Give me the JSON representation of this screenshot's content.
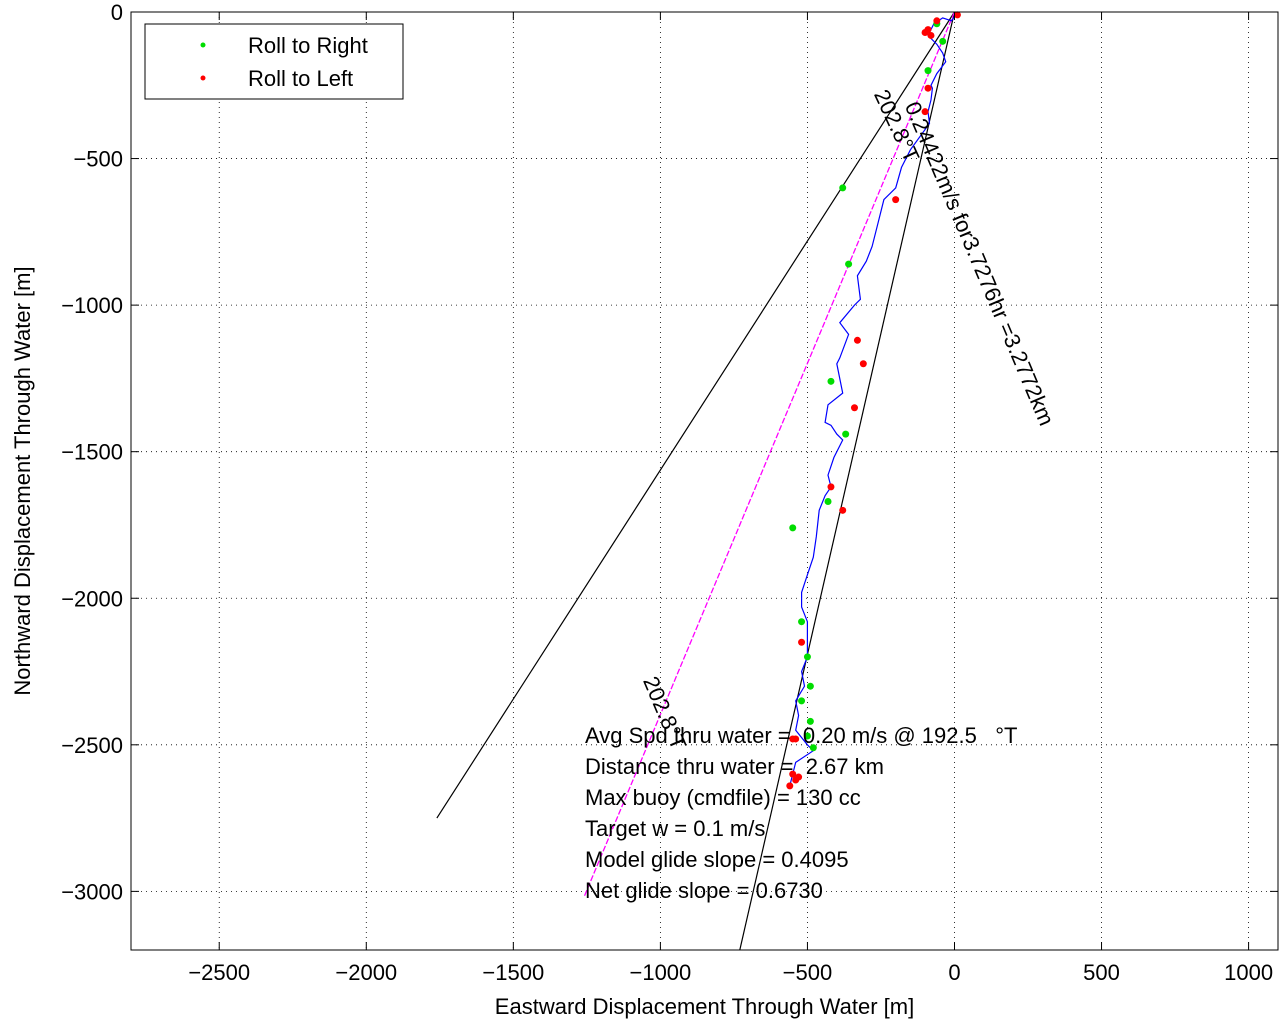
{
  "chart_data": {
    "type": "line",
    "title": "",
    "xlabel": "Eastward Displacement Through Water [m]",
    "ylabel": "Northward Displacement Through Water [m]",
    "xlim": [
      -2800,
      1100
    ],
    "ylim": [
      -3200,
      0
    ],
    "xticks": [
      -2500,
      -2000,
      -1500,
      -1000,
      -500,
      0,
      500,
      1000
    ],
    "yticks": [
      0,
      -500,
      -1000,
      -1500,
      -2000,
      -2500,
      -3000
    ],
    "xtick_labels": [
      "−2500",
      "−2000",
      "−1500",
      "−1000",
      "−500",
      "0",
      "500",
      "1000"
    ],
    "ytick_labels": [
      "0",
      "−500",
      "−1000",
      "−1500",
      "−2000",
      "−2500",
      "−3000"
    ],
    "grid": true,
    "legend_position": "top-left",
    "legend": [
      {
        "label": "Roll to Right",
        "color": "#00dd00"
      },
      {
        "label": "Roll to Left",
        "color": "#ff0000"
      }
    ],
    "colors": {
      "track": "#0000ff",
      "right_roll": "#00dd00",
      "left_roll": "#ff0000",
      "average": "#ff00ff",
      "reference": "#000000"
    },
    "track": {
      "x": [
        5,
        -10,
        -40,
        -70,
        -90,
        -60,
        -40,
        -30,
        -60,
        -80,
        -75,
        -80,
        -90,
        -85,
        -150,
        -180,
        -200,
        -240,
        -260,
        -280,
        -300,
        -330,
        -320,
        -340,
        -390,
        -360,
        -390,
        -400,
        -380,
        -430,
        -440,
        -420,
        -400,
        -380,
        -410,
        -430,
        -420,
        -440,
        -460,
        -470,
        -480,
        -500,
        -520,
        -520,
        -500,
        -500,
        -500,
        -520,
        -510,
        -540,
        -530,
        -540,
        -500,
        -480,
        -540,
        -550,
        -560
      ],
      "y": [
        -10,
        -30,
        -20,
        -40,
        -80,
        -110,
        -140,
        -170,
        -210,
        -250,
        -260,
        -300,
        -340,
        -380,
        -470,
        -530,
        -600,
        -640,
        -720,
        -800,
        -850,
        -900,
        -980,
        -1000,
        -1060,
        -1100,
        -1180,
        -1200,
        -1300,
        -1340,
        -1400,
        -1410,
        -1440,
        -1460,
        -1520,
        -1580,
        -1620,
        -1650,
        -1700,
        -1790,
        -1860,
        -1920,
        -1980,
        -2030,
        -2080,
        -2150,
        -2200,
        -2250,
        -2300,
        -2350,
        -2400,
        -2450,
        -2500,
        -2520,
        -2560,
        -2600,
        -2640
      ]
    },
    "roll_right": {
      "x": [
        -60,
        -40,
        -90,
        -380,
        -370,
        -430,
        -550,
        -520,
        -500,
        -490,
        -520,
        -490,
        -500,
        -480,
        -420,
        -360
      ],
      "y": [
        -40,
        -100,
        -200,
        -600,
        -1440,
        -1670,
        -1760,
        -2080,
        -2200,
        -2300,
        -2350,
        -2420,
        -2470,
        -2510,
        -1260,
        -860
      ]
    },
    "roll_left": {
      "x": [
        10,
        -90,
        -100,
        -80,
        -60,
        -90,
        -100,
        -200,
        -330,
        -310,
        -340,
        -420,
        -380,
        -520,
        -540,
        -550,
        -530,
        -540,
        -560,
        -550
      ],
      "y": [
        -10,
        -60,
        -70,
        -80,
        -30,
        -260,
        -340,
        -640,
        -1120,
        -1200,
        -1350,
        -1620,
        -1700,
        -2150,
        -2480,
        -2600,
        -2610,
        -2620,
        -2640,
        -2480
      ]
    },
    "average_line": {
      "x": [
        0,
        -1260
      ],
      "y": [
        0,
        -3020
      ]
    },
    "reference_lines": [
      {
        "x": [
          0,
          -1760
        ],
        "y": [
          0,
          -2750
        ]
      },
      {
        "x": [
          0,
          -730
        ],
        "y": [
          0,
          -3200
        ]
      }
    ],
    "line_labels": [
      {
        "text": "202.8°T",
        "x": -275,
        "y": -280,
        "angle": 65
      },
      {
        "text": "0.24422m/s for3.7276hr =3.2772km",
        "x": -170,
        "y": -320,
        "angle": 67
      },
      {
        "text": "202.8°T",
        "x": -1060,
        "y": -2280,
        "angle": 67
      }
    ],
    "annotations": [
      "Avg Spd thru water =  0.20 m/s @ 192.5   °T",
      "Distance thru water =  2.67 km",
      "Max buoy (cmdfile) = 130 cc",
      "Target w = 0.1 m/s",
      "Model glide slope = 0.4095",
      "Net glide slope = 0.6730"
    ]
  }
}
